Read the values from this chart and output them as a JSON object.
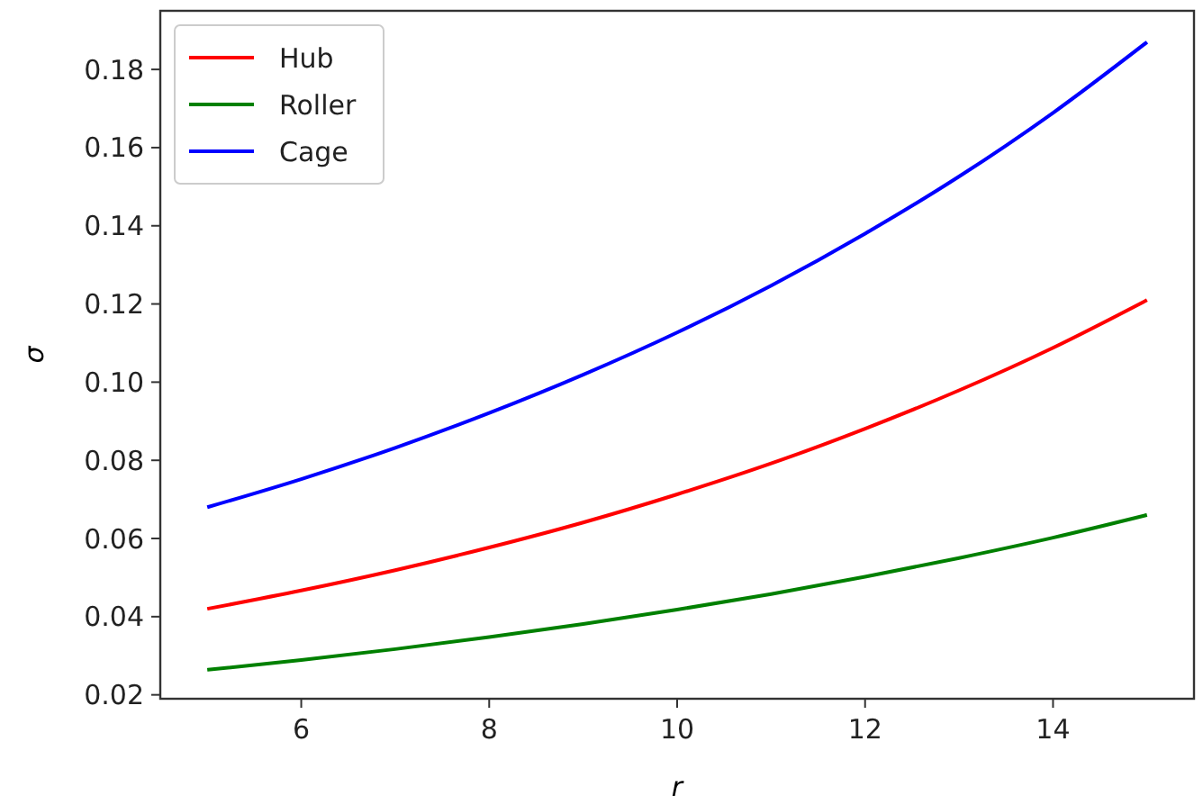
{
  "chart_data": {
    "type": "line",
    "xlabel": "r",
    "ylabel": "σ",
    "x": [
      5,
      6,
      7,
      8,
      9,
      10,
      11,
      12,
      13,
      14,
      15
    ],
    "xlim": [
      4.5,
      15.5
    ],
    "xticks": [
      6,
      8,
      10,
      12,
      14
    ],
    "ylim": [
      0.019,
      0.195
    ],
    "yticks": [
      0.02,
      0.04,
      0.06,
      0.08,
      {
        "value": 0.1,
        "label": "0.10"
      },
      0.12,
      0.14,
      0.16,
      0.18
    ],
    "legend": "top left",
    "grid": false,
    "marker": "none",
    "line_style": "solid",
    "series": [
      {
        "name": "Hub",
        "color": "#ff0000",
        "values": [
          0.042,
          0.0467,
          0.0519,
          0.0577,
          0.0641,
          0.0713,
          0.0792,
          0.0881,
          0.0979,
          0.1088,
          0.121
        ]
      },
      {
        "name": "Roller",
        "color": "#008000",
        "values": [
          0.0264,
          0.0289,
          0.0317,
          0.0348,
          0.0381,
          0.0418,
          0.0458,
          0.0502,
          0.055,
          0.0602,
          0.066
        ]
      },
      {
        "name": "Cage",
        "color": "#0000ff",
        "values": [
          0.068,
          0.0752,
          0.0832,
          0.0921,
          0.1019,
          0.1127,
          0.1247,
          0.138,
          0.1526,
          0.1689,
          0.187
        ]
      }
    ]
  }
}
